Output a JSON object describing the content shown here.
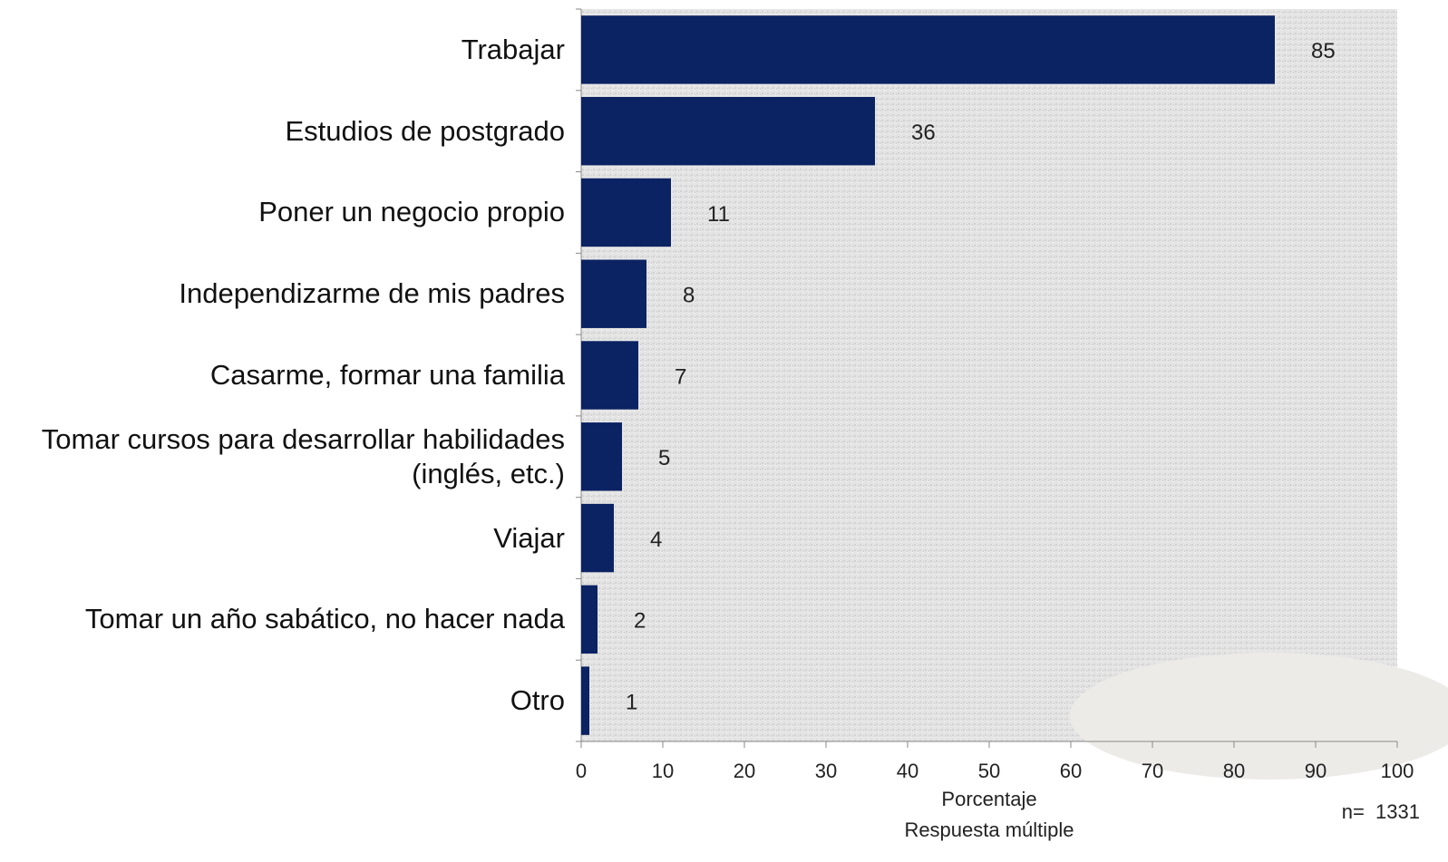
{
  "chart_data": {
    "type": "barh",
    "categories": [
      "Trabajar",
      "Estudios de postgrado",
      "Poner un negocio propio",
      "Independizarme de mis padres",
      "Casarme, formar una familia",
      "Tomar cursos para desarrollar habilidades (inglés, etc.)",
      "Viajar",
      "Tomar un año sabático, no hacer nada",
      "Otro"
    ],
    "values": [
      85,
      36,
      11,
      8,
      7,
      5,
      4,
      2,
      1
    ],
    "color": "#0b2263",
    "xlim": [
      0,
      100
    ],
    "xticks": [
      0,
      10,
      20,
      30,
      40,
      50,
      60,
      70,
      80,
      90,
      100
    ],
    "xlabel": "Porcentaje",
    "subtitle": "Respuesta múltiple",
    "note": "n=  1331"
  }
}
